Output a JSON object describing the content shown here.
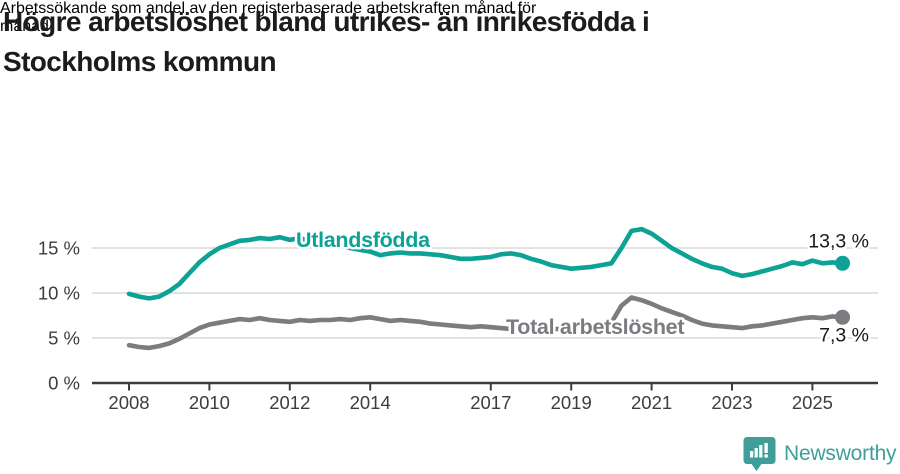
{
  "header": {
    "title_lines": [
      "Högre arbetslöshet bland utrikes- än inrikesfödda i",
      "Stockholms kommun"
    ],
    "subtitle_lines": [
      "Arbetssökande som andel av den registerbaserade arbetskraften månad för",
      "månad."
    ]
  },
  "colors": {
    "accent_teal": "#0ca295",
    "series_gray": "#7b7b80",
    "brand_teal": "#3f9e9a",
    "axis_text": "#3d3d3d",
    "gridline": "#d9d9d9",
    "value_label": "#1a1a1a"
  },
  "chart_data": {
    "type": "line",
    "title": "Högre arbetslöshet bland utrikes- än inrikesfödda i Stockholms kommun",
    "subtitle": "Arbetssökande som andel av den registerbaserade arbetskraften månad för månad.",
    "x_unit": "year",
    "x_start": 2008.0,
    "x_step": 0.25,
    "xlim": [
      2007.1,
      2026.6
    ],
    "ylim": [
      0,
      18.6
    ],
    "grid": "horizontal",
    "legend": "inline-labels",
    "x_ticks": [
      "2008",
      "2010",
      "2012",
      "2014",
      "2017",
      "2019",
      "2021",
      "2023",
      "2025"
    ],
    "y_ticks": [
      {
        "value": 0,
        "label": "0 %"
      },
      {
        "value": 5,
        "label": "5 %"
      },
      {
        "value": 10,
        "label": "10 %"
      },
      {
        "value": 15,
        "label": "15 %"
      }
    ],
    "series": [
      {
        "name": "Utlandsfödda",
        "color": "#0ca295",
        "end_label": "13,3 %",
        "values": [
          9.9,
          9.6,
          9.4,
          9.6,
          10.2,
          11.0,
          12.2,
          13.4,
          14.3,
          15.0,
          15.4,
          15.8,
          15.9,
          16.1,
          16.0,
          16.2,
          15.9,
          16.1,
          15.8,
          15.6,
          15.4,
          15.2,
          15.0,
          14.8,
          14.6,
          14.2,
          14.4,
          14.5,
          14.4,
          14.4,
          14.3,
          14.2,
          14.0,
          13.8,
          13.8,
          13.9,
          14.0,
          14.3,
          14.4,
          14.2,
          13.8,
          13.5,
          13.1,
          12.9,
          12.7,
          12.8,
          12.9,
          13.1,
          13.3,
          15.0,
          16.9,
          17.1,
          16.6,
          15.8,
          15.0,
          14.4,
          13.8,
          13.3,
          12.9,
          12.7,
          12.2,
          11.9,
          12.1,
          12.4,
          12.7,
          13.0,
          13.4,
          13.2,
          13.6,
          13.3,
          13.4,
          13.3
        ]
      },
      {
        "name": "Total arbetslöshet",
        "color": "#7b7b80",
        "end_label": "7,3 %",
        "values": [
          4.2,
          4.0,
          3.9,
          4.1,
          4.4,
          4.9,
          5.5,
          6.1,
          6.5,
          6.7,
          6.9,
          7.1,
          7.0,
          7.2,
          7.0,
          6.9,
          6.8,
          7.0,
          6.9,
          7.0,
          7.0,
          7.1,
          7.0,
          7.2,
          7.3,
          7.1,
          6.9,
          7.0,
          6.9,
          6.8,
          6.6,
          6.5,
          6.4,
          6.3,
          6.2,
          6.3,
          6.2,
          6.1,
          6.0,
          6.1,
          6.0,
          5.9,
          6.0,
          6.0,
          6.0,
          6.1,
          6.2,
          6.4,
          6.7,
          8.6,
          9.5,
          9.2,
          8.8,
          8.3,
          7.9,
          7.5,
          7.0,
          6.6,
          6.4,
          6.3,
          6.2,
          6.1,
          6.3,
          6.4,
          6.6,
          6.8,
          7.0,
          7.2,
          7.3,
          7.2,
          7.4,
          7.3
        ]
      }
    ]
  },
  "footer": {
    "brand": "Newsworthy"
  }
}
